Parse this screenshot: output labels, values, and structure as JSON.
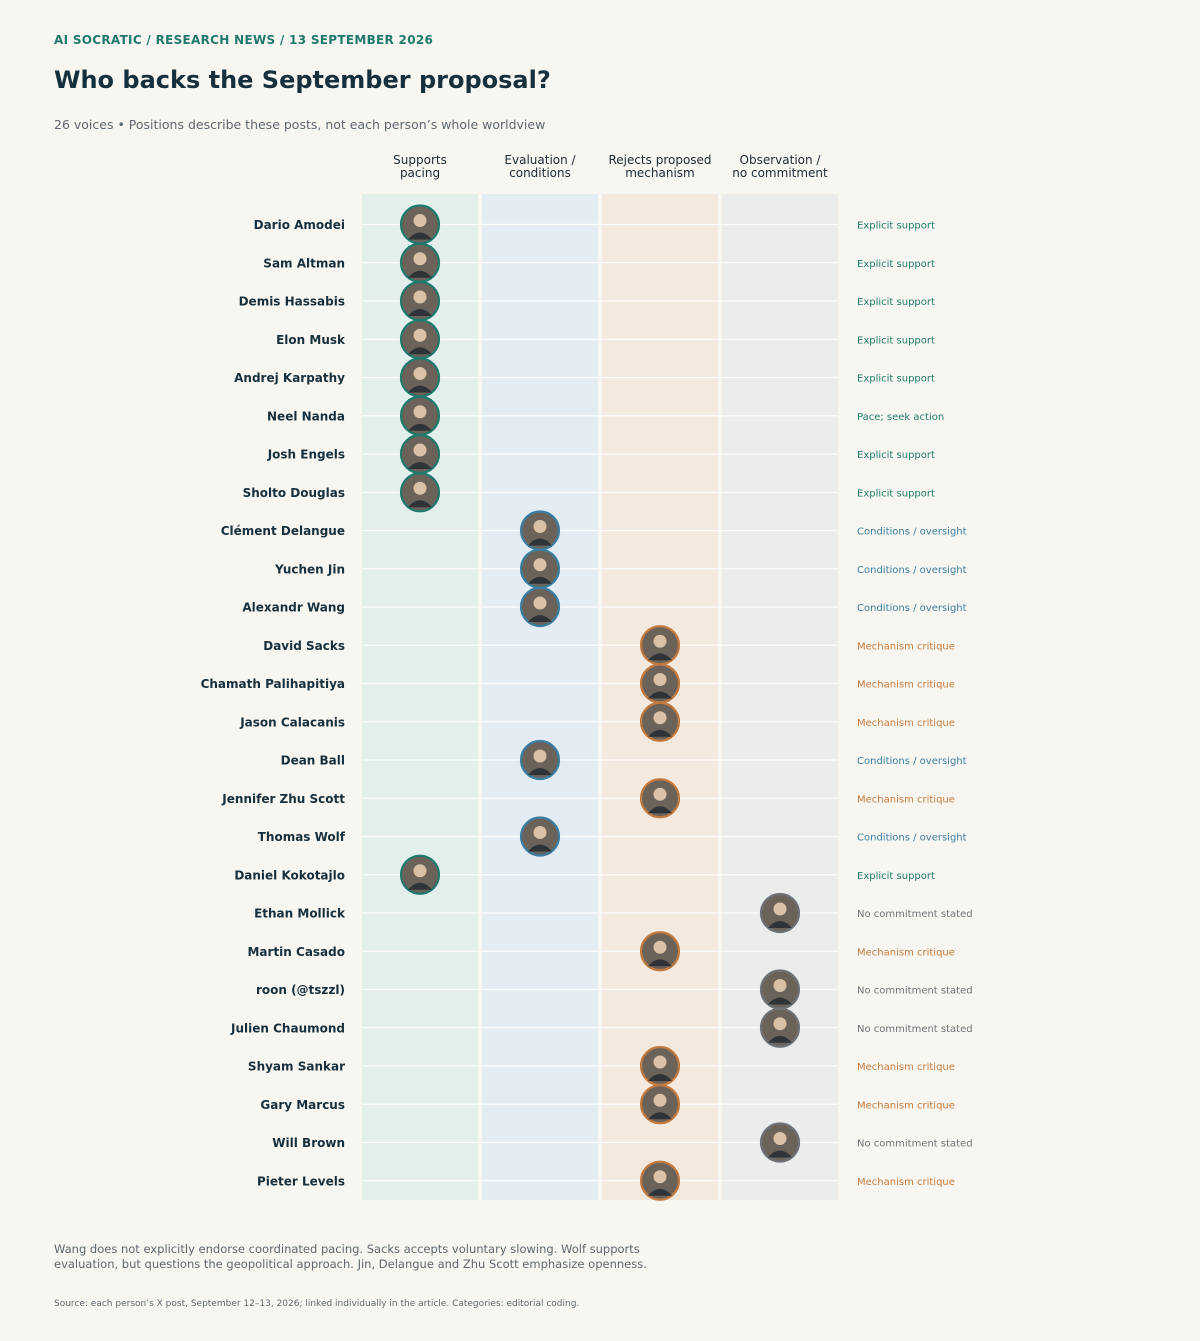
{
  "header": {
    "kicker": "AI SOCRATIC / RESEARCH NEWS / 13 SEPTEMBER 2026",
    "title": "Who backs the September proposal?",
    "subtitle": "26 voices • Positions describe these posts, not each person’s whole worldview"
  },
  "colors": {
    "background": "#f8f6f1",
    "supports": "#1f7a6d",
    "conditions": "#3b7ea1",
    "rejects": "#c27a3f",
    "observation": "#6e7378"
  },
  "chart_data": {
    "type": "scatter",
    "title": "Who backs the September proposal?",
    "columns": [
      {
        "key": "supports",
        "label_lines": [
          "Supports",
          "pacing"
        ],
        "fill": "#e2efea",
        "ring": "#1f7a6d"
      },
      {
        "key": "conditions",
        "label_lines": [
          "Evaluation /",
          "conditions"
        ],
        "fill": "#e4ecf3",
        "ring": "#3b7ea1"
      },
      {
        "key": "rejects",
        "label_lines": [
          "Rejects proposed",
          "mechanism"
        ],
        "fill": "#f3e9de",
        "ring": "#c27a3f"
      },
      {
        "key": "observation",
        "label_lines": [
          "Observation /",
          "no commitment"
        ],
        "fill": "#ebecec",
        "ring": "#6e7378"
      }
    ],
    "people": [
      {
        "name": "Dario Amodei",
        "column": "supports",
        "label": "Explicit support"
      },
      {
        "name": "Sam Altman",
        "column": "supports",
        "label": "Explicit support"
      },
      {
        "name": "Demis Hassabis",
        "column": "supports",
        "label": "Explicit support"
      },
      {
        "name": "Elon Musk",
        "column": "supports",
        "label": "Explicit support"
      },
      {
        "name": "Andrej Karpathy",
        "column": "supports",
        "label": "Explicit support"
      },
      {
        "name": "Neel Nanda",
        "column": "supports",
        "label": "Pace; seek action"
      },
      {
        "name": "Josh Engels",
        "column": "supports",
        "label": "Explicit support"
      },
      {
        "name": "Sholto Douglas",
        "column": "supports",
        "label": "Explicit support"
      },
      {
        "name": "Clément Delangue",
        "column": "conditions",
        "label": "Conditions / oversight"
      },
      {
        "name": "Yuchen Jin",
        "column": "conditions",
        "label": "Conditions / oversight"
      },
      {
        "name": "Alexandr Wang",
        "column": "conditions",
        "label": "Conditions / oversight"
      },
      {
        "name": "David Sacks",
        "column": "rejects",
        "label": "Mechanism critique"
      },
      {
        "name": "Chamath Palihapitiya",
        "column": "rejects",
        "label": "Mechanism critique"
      },
      {
        "name": "Jason Calacanis",
        "column": "rejects",
        "label": "Mechanism critique"
      },
      {
        "name": "Dean Ball",
        "column": "conditions",
        "label": "Conditions / oversight"
      },
      {
        "name": "Jennifer Zhu Scott",
        "column": "rejects",
        "label": "Mechanism critique"
      },
      {
        "name": "Thomas Wolf",
        "column": "conditions",
        "label": "Conditions / oversight"
      },
      {
        "name": "Daniel Kokotajlo",
        "column": "supports",
        "label": "Explicit support"
      },
      {
        "name": "Ethan Mollick",
        "column": "observation",
        "label": "No commitment stated"
      },
      {
        "name": "Martin Casado",
        "column": "rejects",
        "label": "Mechanism critique"
      },
      {
        "name": "roon (@tszzl)",
        "column": "observation",
        "label": "No commitment stated"
      },
      {
        "name": "Julien Chaumond",
        "column": "observation",
        "label": "No commitment stated"
      },
      {
        "name": "Shyam Sankar",
        "column": "rejects",
        "label": "Mechanism critique"
      },
      {
        "name": "Gary Marcus",
        "column": "rejects",
        "label": "Mechanism critique"
      },
      {
        "name": "Will Brown",
        "column": "observation",
        "label": "No commitment stated"
      },
      {
        "name": "Pieter Levels",
        "column": "rejects",
        "label": "Mechanism critique"
      }
    ]
  },
  "footer": {
    "note": "Wang does not explicitly endorse coordinated pacing. Sacks accepts voluntary slowing. Wolf supports evaluation, but questions the geopolitical approach. Jin, Delangue and Zhu Scott emphasize openness.",
    "source": "Source: each person’s X post, September 12–13, 2026; linked individually in the article. Categories: editorial coding."
  }
}
